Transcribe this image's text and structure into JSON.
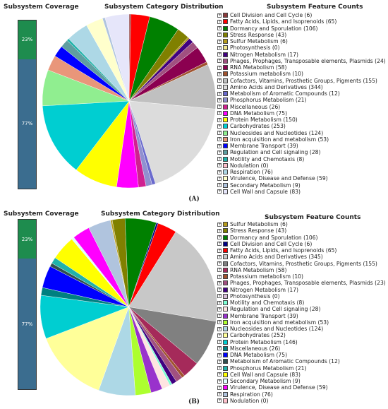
{
  "panels": [
    {
      "label": "(A)",
      "headers": {
        "coverage": "Subsystem Coverage",
        "distribution": "Subsystem Category Distribution",
        "counts": "Subsystem Feature Counts"
      },
      "coverage": {
        "covered_percent": 23,
        "covered_label": "23%",
        "uncovered_label": "77%",
        "covered_color": "#1e8c4e",
        "uncovered_color": "#3b6d8f"
      },
      "chart_data": {
        "type": "pie",
        "title": "Subsystem Category Distribution",
        "slices": [
          {
            "label": "Cell Division and Cell Cycle",
            "count_label": "Cell Division and Cell Cycle (6)",
            "value": 6,
            "color": "#8b3a3a"
          },
          {
            "label": "Fatty Acids, Lipids, and Isoprenoids",
            "count_label": "Fatty Acids, Lipids, and Isoprenoids (65)",
            "value": 65,
            "color": "#ff0000"
          },
          {
            "label": "Dormancy and Sporulation",
            "count_label": "Dormancy and Sporulation (106)",
            "value": 106,
            "color": "#008000"
          },
          {
            "label": "Stress Response",
            "count_label": "Stress Response (43)",
            "value": 43,
            "color": "#808000"
          },
          {
            "label": "Sulfur Metabolism",
            "count_label": "Sulfur Metabolism (6)",
            "value": 6,
            "color": "#b59a1a"
          },
          {
            "label": "Photosynthesis",
            "count_label": "Photosynthesis (0)",
            "value": 0,
            "color": "#f0e68c"
          },
          {
            "label": "Nitrogen Metabolism",
            "count_label": "Nitrogen Metabolism (17)",
            "value": 17,
            "color": "#400080"
          },
          {
            "label": "Phages, Prophages, Transposable elements, Plasmids",
            "count_label": "Phages, Prophages, Transposable elements, Plasmids (24)",
            "value": 24,
            "color": "#a05080"
          },
          {
            "label": "RNA Metabolism",
            "count_label": "RNA Metabolism (58)",
            "value": 58,
            "color": "#8b0050"
          },
          {
            "label": "Potassium metabolism",
            "count_label": "Potassium metabolism (10)",
            "value": 10,
            "color": "#a0522d"
          },
          {
            "label": "Cofactors, Vitamins, Prosthetic Groups, Pigments",
            "count_label": "Cofactors, Vitamins, Prosthetic Groups, Pigments (155)",
            "value": 155,
            "color": "#c0c0c0"
          },
          {
            "label": "Amino Acids and Derivatives",
            "count_label": "Amino Acids and Derivatives (344)",
            "value": 344,
            "color": "#dcdcdc"
          },
          {
            "label": "Metabolism of Aromatic Compounds",
            "count_label": "Metabolism of Aromatic Compounds (12)",
            "value": 12,
            "color": "#6a6acd"
          },
          {
            "label": "Phosphorus Metabolism",
            "count_label": "Phosphorus Metabolism (21)",
            "value": 21,
            "color": "#9090d0"
          },
          {
            "label": "Miscellaneous",
            "count_label": "Miscellaneous (26)",
            "value": 26,
            "color": "#d02090"
          },
          {
            "label": "DNA Metabolism",
            "count_label": "DNA Metabolism (75)",
            "value": 75,
            "color": "#ff00ff"
          },
          {
            "label": "Protein Metabolism",
            "count_label": "Protein Metabolism (150)",
            "value": 150,
            "color": "#ffff00"
          },
          {
            "label": "Carbohydrates",
            "count_label": "Carbohydrates (253)",
            "value": 253,
            "color": "#00ced1"
          },
          {
            "label": "Nucleosides and Nucleotides",
            "count_label": "Nucleosides and Nucleotides (124)",
            "value": 124,
            "color": "#90ee90"
          },
          {
            "label": "Iron acquisition and metabolism",
            "count_label": "Iron acquisition and metabolism (53)",
            "value": 53,
            "color": "#e9967a"
          },
          {
            "label": "Membrane Transport",
            "count_label": "Membrane Transport (39)",
            "value": 39,
            "color": "#0000ff"
          },
          {
            "label": "Regulation and Cell signaling",
            "count_label": "Regulation and Cell signaling (28)",
            "value": 28,
            "color": "#5f9ea0"
          },
          {
            "label": "Motility and Chemotaxis",
            "count_label": "Motility and Chemotaxis (8)",
            "value": 8,
            "color": "#20b2aa"
          },
          {
            "label": "Nodulation",
            "count_label": "Nodulation (0)",
            "value": 0,
            "color": "#ffc0cb"
          },
          {
            "label": "Respiration",
            "count_label": "Respiration (76)",
            "value": 76,
            "color": "#add8e6"
          },
          {
            "label": "Virulence, Disease and Defense",
            "count_label": "Virulence, Disease and Defense (59)",
            "value": 59,
            "color": "#ffffcc"
          },
          {
            "label": "Secondary Metabolism",
            "count_label": "Secondary Metabolism (9)",
            "value": 9,
            "color": "#b0c4de"
          },
          {
            "label": "Cell Wall and Capsule",
            "count_label": "Cell Wall and Capsule (83)",
            "value": 83,
            "color": "#e6e6fa"
          }
        ]
      }
    },
    {
      "label": "(B)",
      "headers": {
        "coverage": "Subsystem Coverage",
        "distribution": "Subsystem Category Distribution",
        "counts": "Subsystem Feature Counts"
      },
      "coverage": {
        "covered_percent": 23,
        "covered_label": "23%",
        "uncovered_label": "77%",
        "covered_color": "#1e8c4e",
        "uncovered_color": "#3b6d8f"
      },
      "chart_data": {
        "type": "pie",
        "title": "Subsystem Category Distribution",
        "slices": [
          {
            "label": "Sulfur Metabolism",
            "count_label": "Sulfur Metabolism (6)",
            "value": 6,
            "color": "#b59a1a"
          },
          {
            "label": "Stress Response",
            "count_label": "Stress Response (43)",
            "value": 43,
            "color": "#808000"
          },
          {
            "label": "Dormancy and Sporulation",
            "count_label": "Dormancy and Sporulation (106)",
            "value": 106,
            "color": "#008000"
          },
          {
            "label": "Cell Division and Cell Cycle",
            "count_label": "Cell Division and Cell Cycle (6)",
            "value": 6,
            "color": "#000080"
          },
          {
            "label": "Fatty Acids, Lipids, and Isoprenoids",
            "count_label": "Fatty Acids, Lipids, and Isoprenoids (65)",
            "value": 65,
            "color": "#ff0000"
          },
          {
            "label": "Amino Acids and Derivatives",
            "count_label": "Amino Acids and Derivatives (345)",
            "value": 345,
            "color": "#c8c8c8"
          },
          {
            "label": "Cofactors, Vitamins, Prosthetic Groups, Pigments",
            "count_label": "Cofactors, Vitamins, Prosthetic Groups, Pigments (155)",
            "value": 155,
            "color": "#808080"
          },
          {
            "label": "RNA Metabolism",
            "count_label": "RNA Metabolism (58)",
            "value": 58,
            "color": "#a52a5a"
          },
          {
            "label": "Potassium metabolism",
            "count_label": "Potassium metabolism (10)",
            "value": 10,
            "color": "#a0522d"
          },
          {
            "label": "Phages, Prophages, Transposable elements, Plasmids",
            "count_label": "Phages, Prophages, Transposable elements, Plasmids (23)",
            "value": 23,
            "color": "#a05080"
          },
          {
            "label": "Nitrogen Metabolism",
            "count_label": "Nitrogen Metabolism (17)",
            "value": 17,
            "color": "#400080"
          },
          {
            "label": "Photosynthesis",
            "count_label": "Photosynthesis (0)",
            "value": 0,
            "color": "#d8bfd8"
          },
          {
            "label": "Motility and Chemotaxis",
            "count_label": "Motility and Chemotaxis (8)",
            "value": 8,
            "color": "#7fffd4"
          },
          {
            "label": "Regulation and Cell signaling",
            "count_label": "Regulation and Cell signaling (28)",
            "value": 28,
            "color": "#ffe4e1"
          },
          {
            "label": "Membrane Transport",
            "count_label": "Membrane Transport (39)",
            "value": 39,
            "color": "#9932cc"
          },
          {
            "label": "Iron acquisition and metabolism",
            "count_label": "Iron acquisition and metabolism (53)",
            "value": 53,
            "color": "#adff2f"
          },
          {
            "label": "Nucleosides and Nucleotides",
            "count_label": "Nucleosides and Nucleotides (124)",
            "value": 124,
            "color": "#add8e6"
          },
          {
            "label": "Carbohydrates",
            "count_label": "Carbohydrates (252)",
            "value": 252,
            "color": "#ffff99"
          },
          {
            "label": "Protein Metabolism",
            "count_label": "Protein Metabolism (146)",
            "value": 146,
            "color": "#00ced1"
          },
          {
            "label": "Miscellaneous",
            "count_label": "Miscellaneous (26)",
            "value": 26,
            "color": "#008080"
          },
          {
            "label": "DNA Metabolism",
            "count_label": "DNA Metabolism (75)",
            "value": 75,
            "color": "#0000ff"
          },
          {
            "label": "Metabolism of Aromatic Compounds",
            "count_label": "Metabolism of Aromatic Compounds (12)",
            "value": 12,
            "color": "#2f4f4f"
          },
          {
            "label": "Phosphorus Metabolism",
            "count_label": "Phosphorus Metabolism (21)",
            "value": 21,
            "color": "#20b2aa"
          },
          {
            "label": "Cell Wall and Capsule",
            "count_label": "Cell Wall and Capsule (83)",
            "value": 83,
            "color": "#ffff00"
          },
          {
            "label": "Secondary Metabolism",
            "count_label": "Secondary Metabolism (9)",
            "value": 9,
            "color": "#e0ffff"
          },
          {
            "label": "Virulence, Disease and Defense",
            "count_label": "Virulence, Disease and Defense (59)",
            "value": 59,
            "color": "#ff00ff"
          },
          {
            "label": "Respiration",
            "count_label": "Respiration (76)",
            "value": 76,
            "color": "#b0c4de"
          },
          {
            "label": "Nodulation",
            "count_label": "Nodulation (0)",
            "value": 0,
            "color": "#ffc0cb"
          }
        ]
      }
    }
  ]
}
